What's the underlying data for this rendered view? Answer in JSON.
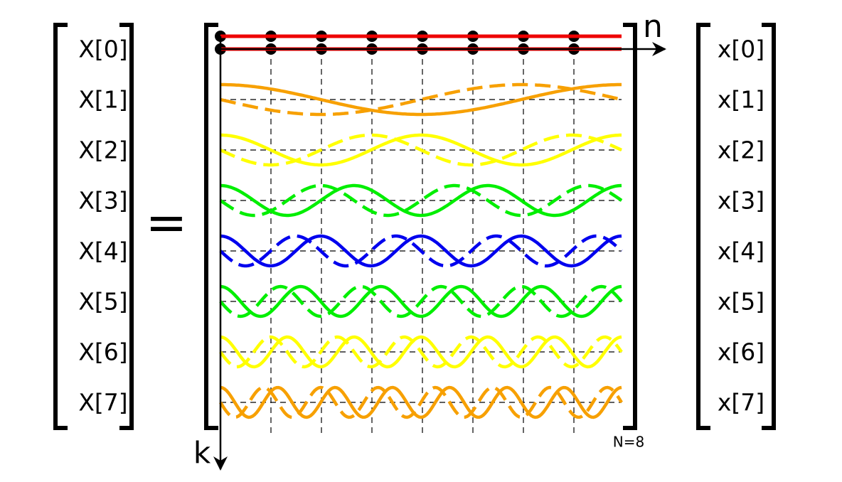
{
  "left_vector": [
    "X[0]",
    "X[1]",
    "X[2]",
    "X[3]",
    "X[4]",
    "X[5]",
    "X[6]",
    "X[7]"
  ],
  "equals": "=",
  "right_vector": [
    "x[0]",
    "x[1]",
    "x[2]",
    "x[3]",
    "x[4]",
    "x[5]",
    "x[6]",
    "x[7]"
  ],
  "axis_n": "n",
  "axis_k": "k",
  "size_note": "N=8"
}
